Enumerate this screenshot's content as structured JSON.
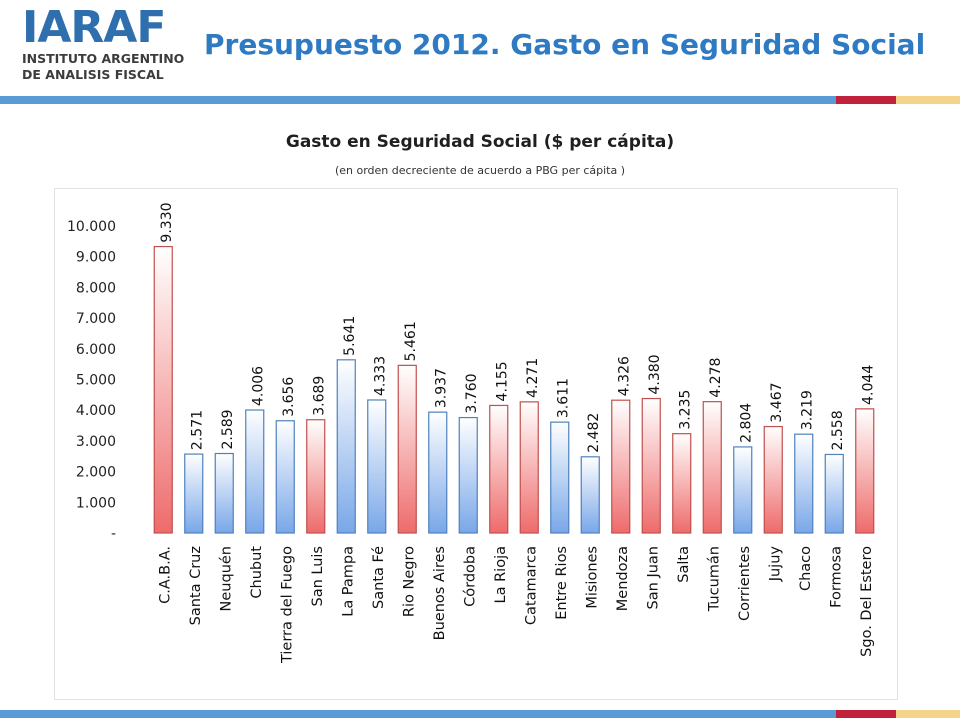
{
  "logo": {
    "mark": "IARAF",
    "line1": "INSTITUTO ARGENTINO",
    "line2": "DE ANALISIS FISCAL"
  },
  "page_title": "Presupuesto 2012. Gasto en Seguridad Social",
  "colors": {
    "title": "#2e7bc3",
    "brand": "#2f6fae",
    "band_blue": "#5b9bd5",
    "band_red": "#c0223b",
    "band_gold": "#f2d48b",
    "bar_red_fill_top": "#ffffff",
    "bar_red_fill_bottom": "#ee6b6b",
    "bar_red_stroke": "#c0504d",
    "bar_blue_fill_top": "#ffffff",
    "bar_blue_fill_bottom": "#79a7e8",
    "bar_blue_stroke": "#4f81bd"
  },
  "chart_data": {
    "type": "bar",
    "title": "Gasto en Seguridad Social ($ per cápita)",
    "subtitle": "(en orden decreciente de acuerdo a PBG per cápita )",
    "xlabel": "",
    "ylabel": "",
    "ylim": [
      0,
      10000
    ],
    "yticks": [
      "-",
      "1.000",
      "2.000",
      "3.000",
      "4.000",
      "5.000",
      "6.000",
      "7.000",
      "8.000",
      "9.000",
      "10.000"
    ],
    "grid": false,
    "legend": "none",
    "categories": [
      "C.A.B.A.",
      "Santa Cruz",
      "Neuquén",
      "Chubut",
      "Tierra del Fuego",
      "San Luis",
      "La Pampa",
      "Santa Fé",
      "Rio Negro",
      "Buenos Aires",
      "Córdoba",
      "La Rioja",
      "Catamarca",
      "Entre Rios",
      "Misiones",
      "Mendoza",
      "San Juan",
      "Salta",
      "Tucumán",
      "Corrientes",
      "Jujuy",
      "Chaco",
      "Formosa",
      "Sgo. Del Estero"
    ],
    "values": [
      9330,
      2571,
      2589,
      4006,
      3656,
      3689,
      5641,
      4333,
      5461,
      3937,
      3760,
      4155,
      4271,
      3611,
      2482,
      4326,
      4380,
      3235,
      4278,
      2804,
      3467,
      3219,
      2558,
      4044
    ],
    "value_labels": [
      "9.330",
      "2.571",
      "2.589",
      "4.006",
      "3.656",
      "3.689",
      "5.641",
      "4.333",
      "5.461",
      "3.937",
      "3.760",
      "4.155",
      "4.271",
      "3.611",
      "2.482",
      "4.326",
      "4.380",
      "3.235",
      "4.278",
      "2.804",
      "3.467",
      "3.219",
      "2.558",
      "4.044"
    ],
    "bar_colors": [
      "red",
      "blue",
      "blue",
      "blue",
      "blue",
      "red",
      "blue",
      "blue",
      "red",
      "blue",
      "blue",
      "red",
      "red",
      "blue",
      "blue",
      "red",
      "red",
      "red",
      "red",
      "blue",
      "red",
      "blue",
      "blue",
      "red"
    ]
  }
}
